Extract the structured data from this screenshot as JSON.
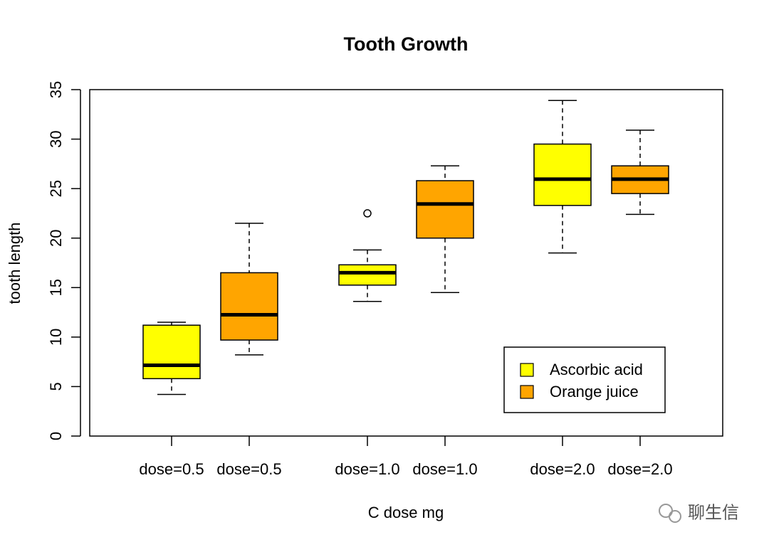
{
  "chart_data": {
    "type": "box",
    "title": "Tooth Growth",
    "x_label": "C dose mg",
    "y_label": "tooth length",
    "ylim": [
      0,
      35
    ],
    "yticks": [
      0,
      5,
      10,
      15,
      20,
      25,
      30,
      35
    ],
    "legend": "bottom-right",
    "series": [
      {
        "name": "Ascorbic acid",
        "color": "#ffff00",
        "categories": [
          "dose=0.5",
          "dose=1.0",
          "dose=2.0"
        ],
        "boxes": [
          {
            "min": 4.2,
            "q1": 5.8,
            "median": 7.15,
            "q3": 11.2,
            "max": 11.5,
            "outliers": []
          },
          {
            "min": 13.6,
            "q1": 15.25,
            "median": 16.5,
            "q3": 17.3,
            "max": 18.8,
            "outliers": [
              22.5
            ]
          },
          {
            "min": 18.5,
            "q1": 23.3,
            "median": 25.95,
            "q3": 29.5,
            "max": 33.9,
            "outliers": []
          }
        ]
      },
      {
        "name": "Orange juice",
        "color": "#ffa500",
        "categories": [
          "dose=0.5",
          "dose=1.0",
          "dose=2.0"
        ],
        "boxes": [
          {
            "min": 8.2,
            "q1": 9.7,
            "median": 12.25,
            "q3": 16.5,
            "max": 21.5,
            "outliers": []
          },
          {
            "min": 14.5,
            "q1": 20.0,
            "median": 23.45,
            "q3": 25.8,
            "max": 27.3,
            "outliers": []
          },
          {
            "min": 22.4,
            "q1": 24.5,
            "median": 25.95,
            "q3": 27.3,
            "max": 30.9,
            "outliers": []
          }
        ]
      }
    ]
  },
  "watermark": "聊生信"
}
